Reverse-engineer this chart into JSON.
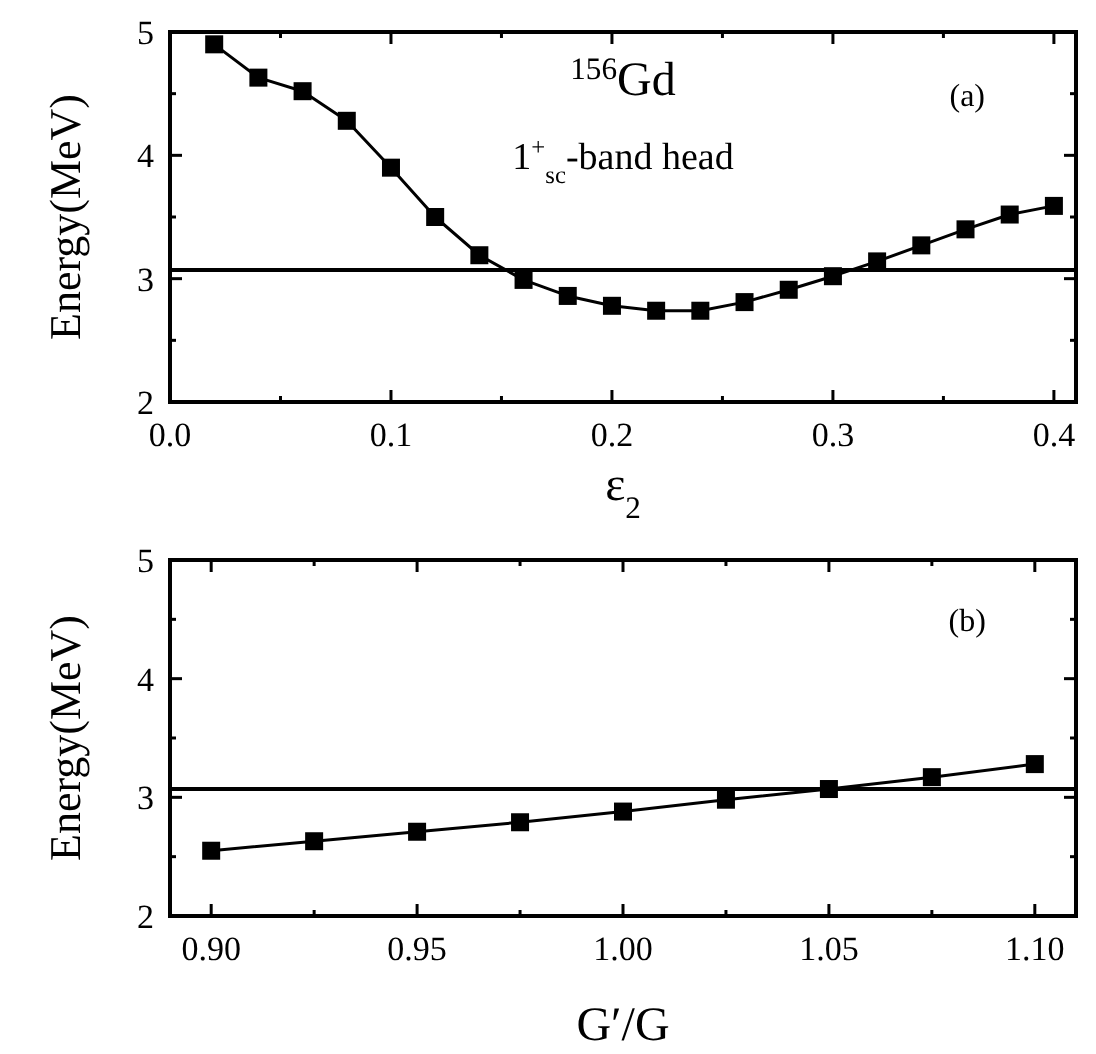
{
  "chart_data": [
    {
      "type": "line",
      "xlabel": "ε$_{2}$",
      "ylabel": "Energy(MeV)",
      "marker": "square",
      "line_style": "solid",
      "x": [
        0.02,
        0.04,
        0.06,
        0.08,
        0.1,
        0.12,
        0.14,
        0.16,
        0.18,
        0.2,
        0.22,
        0.24,
        0.26,
        0.28,
        0.3,
        0.32,
        0.34,
        0.36,
        0.38,
        0.4
      ],
      "series": [
        {
          "color": "#000000",
          "values": [
            4.9,
            4.63,
            4.52,
            4.28,
            3.9,
            3.5,
            3.19,
            2.99,
            2.86,
            2.78,
            2.74,
            2.74,
            2.81,
            2.91,
            3.02,
            3.14,
            3.27,
            3.4,
            3.52,
            3.59
          ]
        }
      ],
      "xlim": [
        0,
        0.41
      ],
      "xticks": [
        {
          "value": 0,
          "label": "0.0"
        },
        {
          "value": 0.05,
          "label": null
        },
        0.1,
        {
          "value": 0.15,
          "label": null
        },
        0.2,
        {
          "value": 0.25,
          "label": null
        },
        0.3,
        {
          "value": 0.35,
          "label": null
        },
        0.4
      ],
      "ylim": [
        2,
        5
      ],
      "yticks": [
        2,
        {
          "value": 2.5,
          "label": null
        },
        3,
        {
          "value": 3.5,
          "label": null
        },
        4,
        {
          "value": 4.5,
          "label": null
        },
        5
      ],
      "ref_lines": [
        {
          "axis": "y",
          "value": 3.07
        }
      ],
      "annotations": [
        "$^{156}$Gd",
        "1$^{+}$$_{sc}$-band head",
        "(a)"
      ]
    },
    {
      "type": "line",
      "xlabel": "G′/G",
      "ylabel": "Energy(MeV)",
      "marker": "square",
      "line_style": "solid",
      "x": [
        0.9,
        0.925,
        0.95,
        0.975,
        1.0,
        1.025,
        1.05,
        1.075,
        1.1
      ],
      "series": [
        {
          "color": "#000000",
          "values": [
            2.55,
            2.63,
            2.71,
            2.79,
            2.88,
            2.98,
            3.07,
            3.17,
            3.28
          ]
        }
      ],
      "xlim": [
        0.89,
        1.11
      ],
      "xticks": [
        {
          "value": 0.9,
          "label": "0.90"
        },
        {
          "value": 0.925,
          "label": null
        },
        0.95,
        {
          "value": 0.975,
          "label": null
        },
        {
          "value": 1,
          "label": "1.00"
        },
        {
          "value": 1.025,
          "label": null
        },
        1.05,
        {
          "value": 1.075,
          "label": null
        },
        {
          "value": 1.1,
          "label": "1.10"
        }
      ],
      "ylim": [
        2,
        5
      ],
      "yticks": [
        2,
        {
          "value": 2.5,
          "label": null
        },
        3,
        {
          "value": 3.5,
          "label": null
        },
        4,
        {
          "value": 4.5,
          "label": null
        },
        5
      ],
      "ref_lines": [
        {
          "axis": "y",
          "value": 3.07
        }
      ],
      "annotations": [
        "(b)"
      ]
    }
  ]
}
